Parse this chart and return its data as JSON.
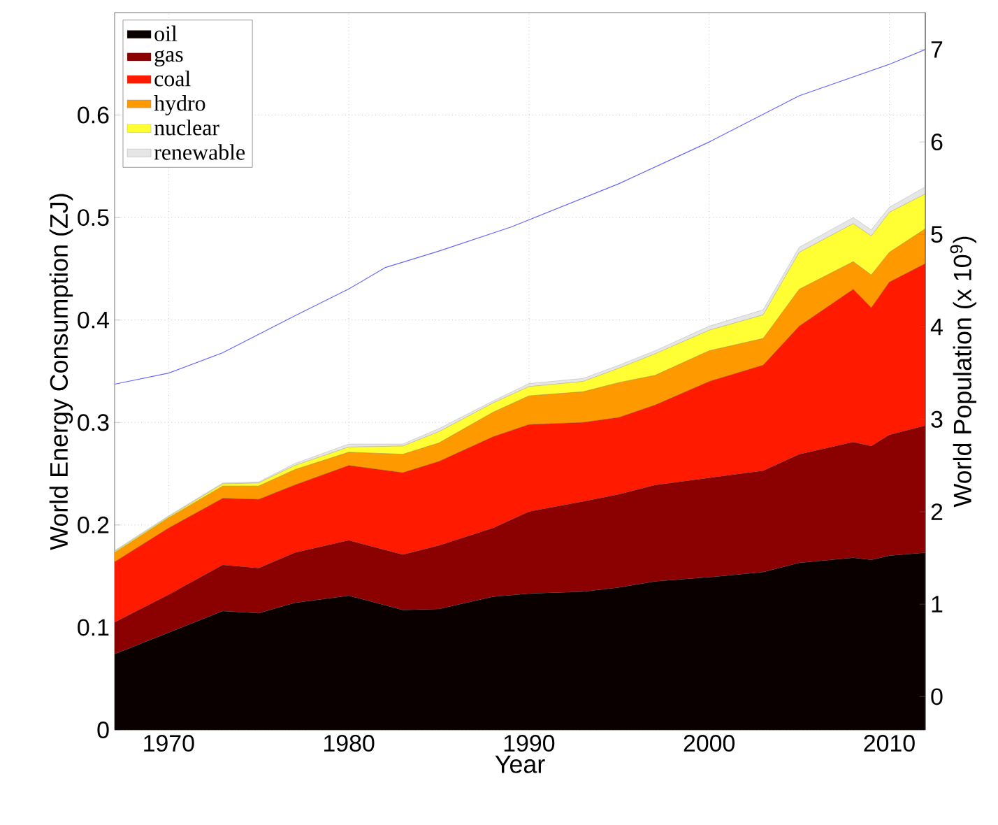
{
  "chart_data": {
    "type": "area",
    "stacked": true,
    "xlabel": "Year",
    "ylabel": "World Energy Consumption  (ZJ)",
    "y2label": "World Population  (x 10$^{9}$)",
    "x": [
      1967,
      1970,
      1973,
      1975,
      1977,
      1980,
      1983,
      1985,
      1988,
      1990,
      1993,
      1995,
      1997,
      2000,
      2003,
      2005,
      2008,
      2009,
      2010,
      2012
    ],
    "xlim": [
      1967,
      2012
    ],
    "xticks": [
      1970,
      1980,
      1990,
      2000,
      2010
    ],
    "ylim": [
      0,
      0.7
    ],
    "yticks": [
      0,
      0.1,
      0.2,
      0.3,
      0.4,
      0.5,
      0.6
    ],
    "y2lim": [
      -0.36,
      7.4
    ],
    "y2ticks": [
      0,
      1,
      2,
      3,
      4,
      5,
      6,
      7
    ],
    "grid": true,
    "legend": "top left",
    "series": [
      {
        "name": "oil",
        "color": "#0a0000",
        "values": [
          0.074,
          0.095,
          0.116,
          0.114,
          0.124,
          0.131,
          0.117,
          0.118,
          0.13,
          0.133,
          0.135,
          0.139,
          0.145,
          0.149,
          0.154,
          0.163,
          0.168,
          0.166,
          0.17,
          0.173
        ]
      },
      {
        "name": "gas",
        "color": "#8b0000",
        "values": [
          0.031,
          0.037,
          0.045,
          0.044,
          0.049,
          0.054,
          0.054,
          0.062,
          0.067,
          0.08,
          0.088,
          0.091,
          0.094,
          0.097,
          0.099,
          0.106,
          0.113,
          0.111,
          0.118,
          0.124
        ]
      },
      {
        "name": "coal",
        "color": "#ff1a00",
        "values": [
          0.059,
          0.065,
          0.065,
          0.067,
          0.066,
          0.073,
          0.08,
          0.082,
          0.089,
          0.085,
          0.077,
          0.075,
          0.078,
          0.094,
          0.103,
          0.125,
          0.149,
          0.135,
          0.149,
          0.158
        ]
      },
      {
        "name": "hydro",
        "color": "#ff9900",
        "values": [
          0.009,
          0.01,
          0.012,
          0.013,
          0.015,
          0.013,
          0.018,
          0.018,
          0.024,
          0.028,
          0.03,
          0.034,
          0.029,
          0.03,
          0.026,
          0.036,
          0.027,
          0.032,
          0.029,
          0.034
        ]
      },
      {
        "name": "nuclear",
        "color": "#ffff33",
        "values": [
          0.001,
          0.001,
          0.002,
          0.003,
          0.004,
          0.005,
          0.008,
          0.011,
          0.009,
          0.009,
          0.01,
          0.014,
          0.021,
          0.02,
          0.023,
          0.036,
          0.037,
          0.038,
          0.039,
          0.034
        ]
      },
      {
        "name": "renewable",
        "color": "#e6e6e6",
        "values": [
          0.001,
          0.001,
          0.001,
          0.001,
          0.002,
          0.003,
          0.002,
          0.003,
          0.002,
          0.003,
          0.003,
          0.003,
          0.003,
          0.004,
          0.005,
          0.005,
          0.006,
          0.006,
          0.005,
          0.007
        ]
      },
      {
        "type": "line",
        "axis": "y2",
        "color": "#6666ff",
        "x": [
          1967,
          1970,
          1973,
          1977,
          1980,
          1982,
          1985,
          1989,
          1995,
          2000,
          2005,
          2010,
          2012
        ],
        "values": [
          3.38,
          3.5,
          3.72,
          4.12,
          4.41,
          4.64,
          4.82,
          5.08,
          5.55,
          6.0,
          6.5,
          6.84,
          7.0
        ]
      }
    ]
  }
}
